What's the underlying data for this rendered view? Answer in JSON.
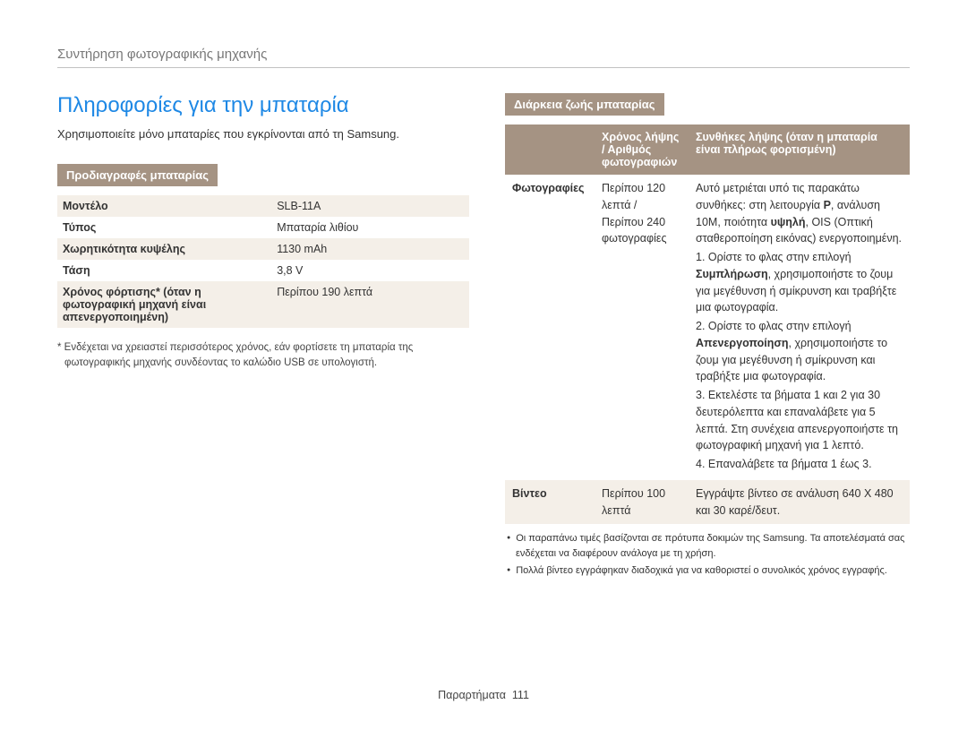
{
  "breadcrumb": "Συντήρηση φωτογραφικής μηχανής",
  "title": "Πληροφορίες για την μπαταρία",
  "intro": "Χρησιμοποιείτε μόνο μπαταρίες που εγκρίνονται από τη Samsung.",
  "specs": {
    "label": "Προδιαγραφές μπαταρίας",
    "rows": [
      {
        "k": "Μοντέλο",
        "v": "SLB-11A"
      },
      {
        "k": "Τύπος",
        "v": "Μπαταρία λιθίου"
      },
      {
        "k": "Χωρητικότητα κυψέλης",
        "v": "1130 mAh"
      },
      {
        "k": "Τάση",
        "v": "3,8 V"
      },
      {
        "k": "Χρόνος φόρτισης*\n(όταν η φωτογραφική μηχανή είναι απενεργοποιημένη)",
        "v": "Περίπου 190 λεπτά"
      }
    ],
    "footnote": "* Ενδέχεται να χρειαστεί περισσότερος χρόνος, εάν φορτίσετε τη μπαταρία της φωτογραφικής μηχανής συνδέοντας το καλώδιο USB σε υπολογιστή."
  },
  "life": {
    "label": "Διάρκεια ζωής μπαταρίας",
    "head1": "Χρόνος λήψης / Αριθμός φωτογραφιών",
    "head2": "Συνθήκες λήψης (όταν η μπαταρία είναι πλήρως φορτισμένη)",
    "row_photos_label": "Φωτογραφίες",
    "row_photos_mid": "Περίπου 120 λεπτά / Περίπου 240 φωτογραφίες",
    "row_video_label": "Βίντεο",
    "row_video_mid": "Περίπου 100 λεπτά",
    "row_video_cond": "Εγγράψτε βίντεο σε ανάλυση 640 X 480 και 30 καρέ/δευτ.",
    "cond": {
      "intro1": "Αυτό μετριέται υπό τις παρακάτω συνθήκες: στη λειτουργία ",
      "mode": "P",
      "intro2": ", ανάλυση 10M, ποιότητα ",
      "quality": "υψηλή",
      "intro3": ", OIS (Οπτική σταθεροποίηση εικόνας) ενεργοποιημένη.",
      "step1a": "1. Ορίστε το φλας στην επιλογή ",
      "step1b": "Συμπλήρωση",
      "step1c": ", χρησιμοποιήστε το ζουμ για μεγέθυνση ή σμίκρυνση και τραβήξτε μια φωτογραφία.",
      "step2a": "2. Ορίστε το φλας στην επιλογή ",
      "step2b": "Απενεργοποίηση",
      "step2c": ", χρησιμοποιήστε το ζουμ για μεγέθυνση ή σμίκρυνση και τραβήξτε μια φωτογραφία.",
      "step3": "3. Εκτελέστε τα βήματα 1 και 2 για 30 δευτερόλεπτα και επαναλάβετε για 5 λεπτά. Στη συνέχεια απενεργοποιήστε τη φωτογραφική μηχανή για 1 λεπτό.",
      "step4": "4. Επαναλάβετε τα βήματα 1 έως 3."
    },
    "bullets": [
      "Οι παραπάνω τιμές βασίζονται σε πρότυπα δοκιμών της Samsung. Τα αποτελέσματά σας ενδέχεται να διαφέρουν ανάλογα με τη χρήση.",
      "Πολλά βίντεο εγγράφηκαν διαδοχικά για να καθοριστεί ο συνολικός χρόνος εγγραφής."
    ]
  },
  "footer_label": "Παραρτήματα",
  "footer_page": "111"
}
